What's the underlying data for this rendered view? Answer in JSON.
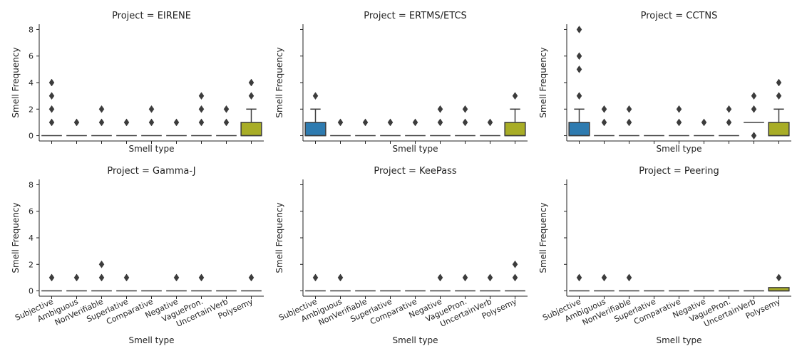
{
  "chart_data": {
    "type": "box",
    "layout": {
      "rows": 2,
      "cols": 3
    },
    "categories": [
      "Subjective",
      "Ambiguous",
      "NonVerifiable",
      "Superlative",
      "Comparative",
      "Negative",
      "VaguePron.",
      "UncertainVerb",
      "Polysemy"
    ],
    "xlabel": "Smell type",
    "ylabel": "Smell Frequency",
    "ylim": [
      -0.4,
      8.4
    ],
    "yticks": [
      0,
      2,
      4,
      6,
      8
    ],
    "colors": {
      "box_fill": "#2e7bb0",
      "polysemy_fill": "#a8ad26",
      "line": "#3c3c3c",
      "outlier": "#3c3c3c"
    },
    "panels": [
      {
        "title": "Project = EIRENE",
        "boxes": [
          {
            "category": "Subjective",
            "q1": 0,
            "median": 0,
            "q3": 0,
            "whisker_low": 0,
            "whisker_high": 0,
            "outliers": [
              1,
              2,
              3,
              4
            ]
          },
          {
            "category": "Ambiguous",
            "q1": 0,
            "median": 0,
            "q3": 0,
            "whisker_low": 0,
            "whisker_high": 0,
            "outliers": [
              1
            ]
          },
          {
            "category": "NonVerifiable",
            "q1": 0,
            "median": 0,
            "q3": 0,
            "whisker_low": 0,
            "whisker_high": 0,
            "outliers": [
              1,
              2
            ]
          },
          {
            "category": "Superlative",
            "q1": 0,
            "median": 0,
            "q3": 0,
            "whisker_low": 0,
            "whisker_high": 0,
            "outliers": [
              1
            ]
          },
          {
            "category": "Comparative",
            "q1": 0,
            "median": 0,
            "q3": 0,
            "whisker_low": 0,
            "whisker_high": 0,
            "outliers": [
              1,
              2
            ]
          },
          {
            "category": "Negative",
            "q1": 0,
            "median": 0,
            "q3": 0,
            "whisker_low": 0,
            "whisker_high": 0,
            "outliers": [
              1
            ]
          },
          {
            "category": "VaguePron.",
            "q1": 0,
            "median": 0,
            "q3": 0,
            "whisker_low": 0,
            "whisker_high": 0,
            "outliers": [
              1,
              2,
              3
            ]
          },
          {
            "category": "UncertainVerb",
            "q1": 0,
            "median": 0,
            "q3": 0,
            "whisker_low": 0,
            "whisker_high": 0,
            "outliers": [
              1,
              2
            ]
          },
          {
            "category": "Polysemy",
            "q1": 0,
            "median": 0,
            "q3": 1,
            "whisker_low": 0,
            "whisker_high": 2,
            "outliers": [
              3,
              4
            ]
          }
        ]
      },
      {
        "title": "Project = ERTMS/ETCS",
        "boxes": [
          {
            "category": "Subjective",
            "q1": 0,
            "median": 0,
            "q3": 1,
            "whisker_low": 0,
            "whisker_high": 2,
            "outliers": [
              3
            ]
          },
          {
            "category": "Ambiguous",
            "q1": 0,
            "median": 0,
            "q3": 0,
            "whisker_low": 0,
            "whisker_high": 0,
            "outliers": [
              1
            ]
          },
          {
            "category": "NonVerifiable",
            "q1": 0,
            "median": 0,
            "q3": 0,
            "whisker_low": 0,
            "whisker_high": 0,
            "outliers": [
              1
            ]
          },
          {
            "category": "Superlative",
            "q1": 0,
            "median": 0,
            "q3": 0,
            "whisker_low": 0,
            "whisker_high": 0,
            "outliers": [
              1
            ]
          },
          {
            "category": "Comparative",
            "q1": 0,
            "median": 0,
            "q3": 0,
            "whisker_low": 0,
            "whisker_high": 0,
            "outliers": [
              1
            ]
          },
          {
            "category": "Negative",
            "q1": 0,
            "median": 0,
            "q3": 0,
            "whisker_low": 0,
            "whisker_high": 0,
            "outliers": [
              1,
              2
            ]
          },
          {
            "category": "VaguePron.",
            "q1": 0,
            "median": 0,
            "q3": 0,
            "whisker_low": 0,
            "whisker_high": 0,
            "outliers": [
              1,
              2
            ]
          },
          {
            "category": "UncertainVerb",
            "q1": 0,
            "median": 0,
            "q3": 0,
            "whisker_low": 0,
            "whisker_high": 0,
            "outliers": [
              1
            ]
          },
          {
            "category": "Polysemy",
            "q1": 0,
            "median": 0,
            "q3": 1,
            "whisker_low": 0,
            "whisker_high": 2,
            "outliers": [
              3
            ]
          }
        ]
      },
      {
        "title": "Project = CCTNS",
        "boxes": [
          {
            "category": "Subjective",
            "q1": 0,
            "median": 0,
            "q3": 1,
            "whisker_low": 0,
            "whisker_high": 2,
            "outliers": [
              3,
              5,
              6,
              8
            ]
          },
          {
            "category": "Ambiguous",
            "q1": 0,
            "median": 0,
            "q3": 0,
            "whisker_low": 0,
            "whisker_high": 0,
            "outliers": [
              1,
              2
            ]
          },
          {
            "category": "NonVerifiable",
            "q1": 0,
            "median": 0,
            "q3": 0,
            "whisker_low": 0,
            "whisker_high": 0,
            "outliers": [
              1,
              2
            ]
          },
          {
            "category": "Superlative",
            "q1": 0,
            "median": 0,
            "q3": 0,
            "whisker_low": 0,
            "whisker_high": 0,
            "outliers": []
          },
          {
            "category": "Comparative",
            "q1": 0,
            "median": 0,
            "q3": 0,
            "whisker_low": 0,
            "whisker_high": 0,
            "outliers": [
              1,
              2
            ]
          },
          {
            "category": "Negative",
            "q1": 0,
            "median": 0,
            "q3": 0,
            "whisker_low": 0,
            "whisker_high": 0,
            "outliers": [
              1
            ]
          },
          {
            "category": "VaguePron.",
            "q1": 0,
            "median": 0,
            "q3": 0,
            "whisker_low": 0,
            "whisker_high": 0,
            "outliers": [
              1,
              2
            ]
          },
          {
            "category": "UncertainVerb",
            "q1": 1,
            "median": 1,
            "q3": 1,
            "whisker_low": 1,
            "whisker_high": 1,
            "outliers": [
              0,
              2,
              3
            ]
          },
          {
            "category": "Polysemy",
            "q1": 0,
            "median": 0,
            "q3": 1,
            "whisker_low": 0,
            "whisker_high": 2,
            "outliers": [
              3,
              4
            ]
          }
        ]
      },
      {
        "title": "Project = Gamma-J",
        "boxes": [
          {
            "category": "Subjective",
            "q1": 0,
            "median": 0,
            "q3": 0,
            "whisker_low": 0,
            "whisker_high": 0,
            "outliers": [
              1
            ]
          },
          {
            "category": "Ambiguous",
            "q1": 0,
            "median": 0,
            "q3": 0,
            "whisker_low": 0,
            "whisker_high": 0,
            "outliers": [
              1
            ]
          },
          {
            "category": "NonVerifiable",
            "q1": 0,
            "median": 0,
            "q3": 0,
            "whisker_low": 0,
            "whisker_high": 0,
            "outliers": [
              1,
              2
            ]
          },
          {
            "category": "Superlative",
            "q1": 0,
            "median": 0,
            "q3": 0,
            "whisker_low": 0,
            "whisker_high": 0,
            "outliers": [
              1
            ]
          },
          {
            "category": "Comparative",
            "q1": 0,
            "median": 0,
            "q3": 0,
            "whisker_low": 0,
            "whisker_high": 0,
            "outliers": []
          },
          {
            "category": "Negative",
            "q1": 0,
            "median": 0,
            "q3": 0,
            "whisker_low": 0,
            "whisker_high": 0,
            "outliers": [
              1
            ]
          },
          {
            "category": "VaguePron.",
            "q1": 0,
            "median": 0,
            "q3": 0,
            "whisker_low": 0,
            "whisker_high": 0,
            "outliers": [
              1
            ]
          },
          {
            "category": "UncertainVerb",
            "q1": 0,
            "median": 0,
            "q3": 0,
            "whisker_low": 0,
            "whisker_high": 0,
            "outliers": []
          },
          {
            "category": "Polysemy",
            "q1": 0,
            "median": 0,
            "q3": 0,
            "whisker_low": 0,
            "whisker_high": 0,
            "outliers": [
              1
            ]
          }
        ]
      },
      {
        "title": "Project = KeePass",
        "boxes": [
          {
            "category": "Subjective",
            "q1": 0,
            "median": 0,
            "q3": 0,
            "whisker_low": 0,
            "whisker_high": 0,
            "outliers": [
              1
            ]
          },
          {
            "category": "Ambiguous",
            "q1": 0,
            "median": 0,
            "q3": 0,
            "whisker_low": 0,
            "whisker_high": 0,
            "outliers": [
              1
            ]
          },
          {
            "category": "NonVerifiable",
            "q1": 0,
            "median": 0,
            "q3": 0,
            "whisker_low": 0,
            "whisker_high": 0,
            "outliers": []
          },
          {
            "category": "Superlative",
            "q1": 0,
            "median": 0,
            "q3": 0,
            "whisker_low": 0,
            "whisker_high": 0,
            "outliers": []
          },
          {
            "category": "Comparative",
            "q1": 0,
            "median": 0,
            "q3": 0,
            "whisker_low": 0,
            "whisker_high": 0,
            "outliers": []
          },
          {
            "category": "Negative",
            "q1": 0,
            "median": 0,
            "q3": 0,
            "whisker_low": 0,
            "whisker_high": 0,
            "outliers": [
              1
            ]
          },
          {
            "category": "VaguePron.",
            "q1": 0,
            "median": 0,
            "q3": 0,
            "whisker_low": 0,
            "whisker_high": 0,
            "outliers": [
              1
            ]
          },
          {
            "category": "UncertainVerb",
            "q1": 0,
            "median": 0,
            "q3": 0,
            "whisker_low": 0,
            "whisker_high": 0,
            "outliers": [
              1
            ]
          },
          {
            "category": "Polysemy",
            "q1": 0,
            "median": 0,
            "q3": 0,
            "whisker_low": 0,
            "whisker_high": 0,
            "outliers": [
              1,
              2
            ]
          }
        ]
      },
      {
        "title": "Project = Peering",
        "boxes": [
          {
            "category": "Subjective",
            "q1": 0,
            "median": 0,
            "q3": 0,
            "whisker_low": 0,
            "whisker_high": 0,
            "outliers": [
              1
            ]
          },
          {
            "category": "Ambiguous",
            "q1": 0,
            "median": 0,
            "q3": 0,
            "whisker_low": 0,
            "whisker_high": 0,
            "outliers": [
              1
            ]
          },
          {
            "category": "NonVerifiable",
            "q1": 0,
            "median": 0,
            "q3": 0,
            "whisker_low": 0,
            "whisker_high": 0,
            "outliers": [
              1
            ]
          },
          {
            "category": "Superlative",
            "q1": 0,
            "median": 0,
            "q3": 0,
            "whisker_low": 0,
            "whisker_high": 0,
            "outliers": []
          },
          {
            "category": "Comparative",
            "q1": 0,
            "median": 0,
            "q3": 0,
            "whisker_low": 0,
            "whisker_high": 0,
            "outliers": []
          },
          {
            "category": "Negative",
            "q1": 0,
            "median": 0,
            "q3": 0,
            "whisker_low": 0,
            "whisker_high": 0,
            "outliers": []
          },
          {
            "category": "VaguePron.",
            "q1": 0,
            "median": 0,
            "q3": 0,
            "whisker_low": 0,
            "whisker_high": 0,
            "outliers": []
          },
          {
            "category": "UncertainVerb",
            "q1": 0,
            "median": 0,
            "q3": 0,
            "whisker_low": 0,
            "whisker_high": 0,
            "outliers": []
          },
          {
            "category": "Polysemy",
            "q1": 0,
            "median": 0,
            "q3": 0.25,
            "whisker_low": 0,
            "whisker_high": 0.25,
            "outliers": [
              1
            ]
          }
        ]
      }
    ]
  }
}
